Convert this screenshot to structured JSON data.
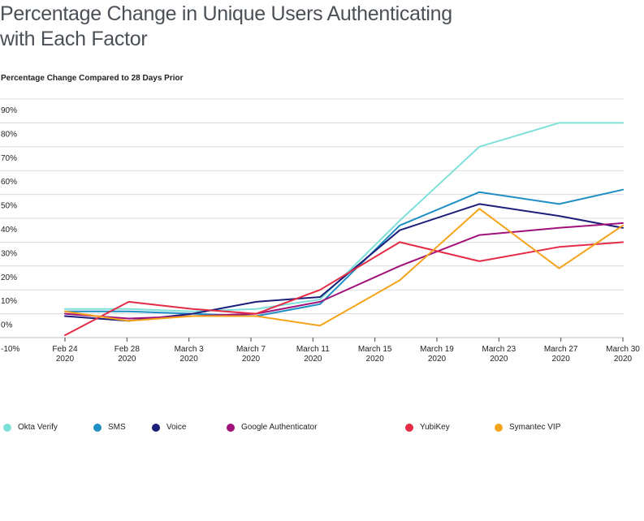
{
  "title": "Percentage Change in Unique Users Authenticating with Each Factor",
  "subtitle": "Percentage Change Compared to 28 Days Prior",
  "chart_data": {
    "type": "line",
    "title": "Percentage Change in Unique Users Authenticating with Each Factor",
    "ylabel": "Percentage Change Compared to 28 Days Prior",
    "xlabel": "",
    "ylim": [
      -10,
      90
    ],
    "yticks": [
      "90%",
      "80%",
      "70%",
      "60%",
      "50%",
      "40%",
      "30%",
      "20%",
      "10%",
      "0%",
      "-10%"
    ],
    "xticks": [
      {
        "date": "Feb 24",
        "year": "2020"
      },
      {
        "date": "Feb 28",
        "year": "2020"
      },
      {
        "date": "March 3",
        "year": "2020"
      },
      {
        "date": "March 7",
        "year": "2020"
      },
      {
        "date": "March 11",
        "year": "2020"
      },
      {
        "date": "March 15",
        "year": "2020"
      },
      {
        "date": "March 19",
        "year": "2020"
      },
      {
        "date": "March 23",
        "year": "2020"
      },
      {
        "date": "March 27",
        "year": "2020"
      },
      {
        "date": "March 30",
        "year": "2020"
      }
    ],
    "grid": true,
    "legend_position": "bottom",
    "series": [
      {
        "name": "Okta Verify",
        "color": "#7ee0d9",
        "x": [
          "2020-02-24",
          "2020-02-28",
          "2020-03-03",
          "2020-03-07",
          "2020-03-11",
          "2020-03-16",
          "2020-03-21",
          "2020-03-26",
          "2020-03-30"
        ],
        "values": [
          2,
          2,
          1,
          2,
          6,
          39,
          70,
          80,
          80
        ]
      },
      {
        "name": "SMS",
        "color": "#1f8ec4",
        "x": [
          "2020-02-24",
          "2020-02-28",
          "2020-03-03",
          "2020-03-07",
          "2020-03-11",
          "2020-03-16",
          "2020-03-21",
          "2020-03-26",
          "2020-03-30"
        ],
        "values": [
          1,
          1,
          0,
          -1,
          4,
          37,
          51,
          46,
          52
        ]
      },
      {
        "name": "Voice",
        "color": "#1b1f7a",
        "x": [
          "2020-02-24",
          "2020-02-28",
          "2020-03-03",
          "2020-03-07",
          "2020-03-11",
          "2020-03-16",
          "2020-03-21",
          "2020-03-26",
          "2020-03-30"
        ],
        "values": [
          -1,
          -3,
          0,
          5,
          7,
          35,
          46,
          41,
          36
        ]
      },
      {
        "name": "Google Authenticator",
        "color": "#a0127a",
        "x": [
          "2020-02-24",
          "2020-02-28",
          "2020-03-03",
          "2020-03-07",
          "2020-03-11",
          "2020-03-16",
          "2020-03-21",
          "2020-03-26",
          "2020-03-30"
        ],
        "values": [
          0,
          -2,
          -1,
          0,
          5,
          20,
          33,
          36,
          38
        ]
      },
      {
        "name": "YubiKey",
        "color": "#e32b46",
        "x": [
          "2020-02-24",
          "2020-02-28",
          "2020-03-03",
          "2020-03-07",
          "2020-03-11",
          "2020-03-16",
          "2020-03-21",
          "2020-03-26",
          "2020-03-30"
        ],
        "values": [
          -9,
          5,
          2,
          0,
          10,
          30,
          22,
          28,
          30
        ]
      },
      {
        "name": "Symantec VIP",
        "color": "#f5a31a",
        "x": [
          "2020-02-24",
          "2020-02-28",
          "2020-03-03",
          "2020-03-07",
          "2020-03-11",
          "2020-03-16",
          "2020-03-21",
          "2020-03-26",
          "2020-03-30"
        ],
        "values": [
          1,
          -3,
          -1,
          -1,
          -5,
          14,
          44,
          19,
          37
        ]
      }
    ]
  }
}
